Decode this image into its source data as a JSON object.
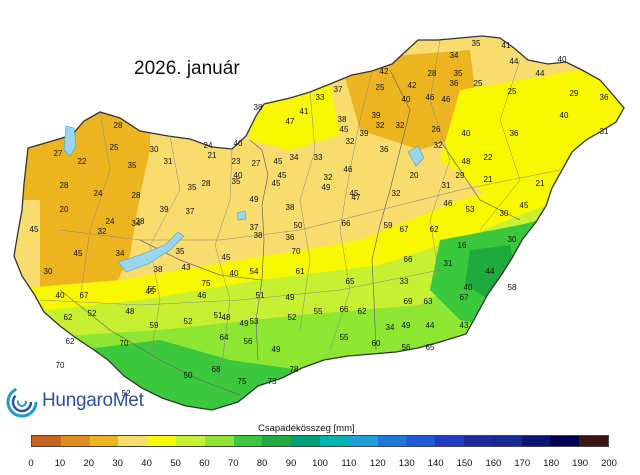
{
  "title": "2026. január",
  "legend": {
    "title": "Csapadékösszeg [mm]",
    "ticks": [
      "0",
      "10",
      "20",
      "30",
      "40",
      "50",
      "60",
      "70",
      "80",
      "90",
      "100",
      "110",
      "120",
      "130",
      "140",
      "150",
      "160",
      "170",
      "180",
      "190",
      "200"
    ],
    "colors": [
      "#c8641e",
      "#e08c1e",
      "#ecb41e",
      "#f8dc6e",
      "#f8f800",
      "#c8f032",
      "#8ce632",
      "#3cc83c",
      "#1eaa3c",
      "#00a078",
      "#00b4b4",
      "#1ea0dc",
      "#1e78dc",
      "#1e5adc",
      "#1e3cc8",
      "#1e28a0",
      "#142896",
      "#0a1478",
      "#000050",
      "#3c1414"
    ]
  },
  "logo": {
    "name": "HungaroMet"
  },
  "stations": [
    {
      "v": "35"
    },
    {
      "v": "41"
    },
    {
      "v": "34"
    },
    {
      "v": "44"
    },
    {
      "v": "40"
    },
    {
      "v": "42"
    },
    {
      "v": "28"
    },
    {
      "v": "35"
    },
    {
      "v": "44"
    },
    {
      "v": "25"
    },
    {
      "v": "42"
    },
    {
      "v": "46"
    },
    {
      "v": "25"
    },
    {
      "v": "29"
    },
    {
      "v": "37"
    },
    {
      "v": "33"
    },
    {
      "v": "40"
    },
    {
      "v": "46"
    },
    {
      "v": "36"
    },
    {
      "v": "38"
    },
    {
      "v": "41"
    },
    {
      "v": "47"
    },
    {
      "v": "25"
    },
    {
      "v": "36"
    },
    {
      "v": "38"
    },
    {
      "v": "39"
    },
    {
      "v": "32"
    },
    {
      "v": "32"
    },
    {
      "v": "26"
    },
    {
      "v": "40"
    },
    {
      "v": "36"
    },
    {
      "v": "40"
    },
    {
      "v": "31"
    },
    {
      "v": "45"
    },
    {
      "v": "39"
    },
    {
      "v": "28"
    },
    {
      "v": "27"
    },
    {
      "v": "22"
    },
    {
      "v": "25"
    },
    {
      "v": "23"
    },
    {
      "v": "30"
    },
    {
      "v": "24"
    },
    {
      "v": "40"
    },
    {
      "v": "32"
    },
    {
      "v": "36"
    },
    {
      "v": "32"
    },
    {
      "v": "21"
    },
    {
      "v": "31"
    },
    {
      "v": "40"
    },
    {
      "v": "34"
    },
    {
      "v": "33"
    },
    {
      "v": "45"
    },
    {
      "v": "48"
    },
    {
      "v": "22"
    },
    {
      "v": "28"
    },
    {
      "v": "35"
    },
    {
      "v": "46"
    },
    {
      "v": "29"
    },
    {
      "v": "27"
    },
    {
      "v": "45"
    },
    {
      "v": "28"
    },
    {
      "v": "45"
    },
    {
      "v": "32"
    },
    {
      "v": "20"
    },
    {
      "v": "24"
    },
    {
      "v": "28"
    },
    {
      "v": "35"
    },
    {
      "v": "49"
    },
    {
      "v": "45"
    },
    {
      "v": "21"
    },
    {
      "v": "32"
    },
    {
      "v": "35"
    },
    {
      "v": "31"
    },
    {
      "v": "20"
    },
    {
      "v": "39"
    },
    {
      "v": "49"
    },
    {
      "v": "47"
    },
    {
      "v": "46"
    },
    {
      "v": "21"
    },
    {
      "v": "24"
    },
    {
      "v": "34"
    },
    {
      "v": "37"
    },
    {
      "v": "32"
    },
    {
      "v": "38"
    },
    {
      "v": "37"
    },
    {
      "v": "50"
    },
    {
      "v": "53"
    },
    {
      "v": "67"
    },
    {
      "v": "62"
    },
    {
      "v": "30"
    },
    {
      "v": "45"
    },
    {
      "v": "45"
    },
    {
      "v": "38"
    },
    {
      "v": "38"
    },
    {
      "v": "36"
    },
    {
      "v": "66"
    },
    {
      "v": "59"
    },
    {
      "v": "16"
    },
    {
      "v": "30"
    },
    {
      "v": "45"
    },
    {
      "v": "34"
    },
    {
      "v": "35"
    },
    {
      "v": "40"
    },
    {
      "v": "70"
    },
    {
      "v": "66"
    },
    {
      "v": "31"
    },
    {
      "v": "30"
    },
    {
      "v": "38"
    },
    {
      "v": "43"
    },
    {
      "v": "45"
    },
    {
      "v": "54"
    },
    {
      "v": "61"
    },
    {
      "v": "65"
    },
    {
      "v": "33"
    },
    {
      "v": "44"
    },
    {
      "v": "40"
    },
    {
      "v": "67"
    },
    {
      "v": "75"
    },
    {
      "v": "40"
    },
    {
      "v": "58"
    },
    {
      "v": "45"
    },
    {
      "v": "46"
    },
    {
      "v": "55"
    },
    {
      "v": "51"
    },
    {
      "v": "49"
    },
    {
      "v": "69"
    },
    {
      "v": "63"
    },
    {
      "v": "67"
    },
    {
      "v": "62"
    },
    {
      "v": "52"
    },
    {
      "v": "48"
    },
    {
      "v": "48"
    },
    {
      "v": "53"
    },
    {
      "v": "52"
    },
    {
      "v": "55"
    },
    {
      "v": "66"
    },
    {
      "v": "62"
    },
    {
      "v": "49"
    },
    {
      "v": "44"
    },
    {
      "v": "43"
    },
    {
      "v": "52"
    },
    {
      "v": "59"
    },
    {
      "v": "51"
    },
    {
      "v": "49"
    },
    {
      "v": "62"
    },
    {
      "v": "70"
    },
    {
      "v": "64"
    },
    {
      "v": "56"
    },
    {
      "v": "49"
    },
    {
      "v": "55"
    },
    {
      "v": "60"
    },
    {
      "v": "34"
    },
    {
      "v": "56"
    },
    {
      "v": "65"
    },
    {
      "v": "70"
    },
    {
      "v": "50"
    },
    {
      "v": "52"
    },
    {
      "v": "68"
    },
    {
      "v": "75"
    },
    {
      "v": "73"
    },
    {
      "v": "78"
    }
  ]
}
